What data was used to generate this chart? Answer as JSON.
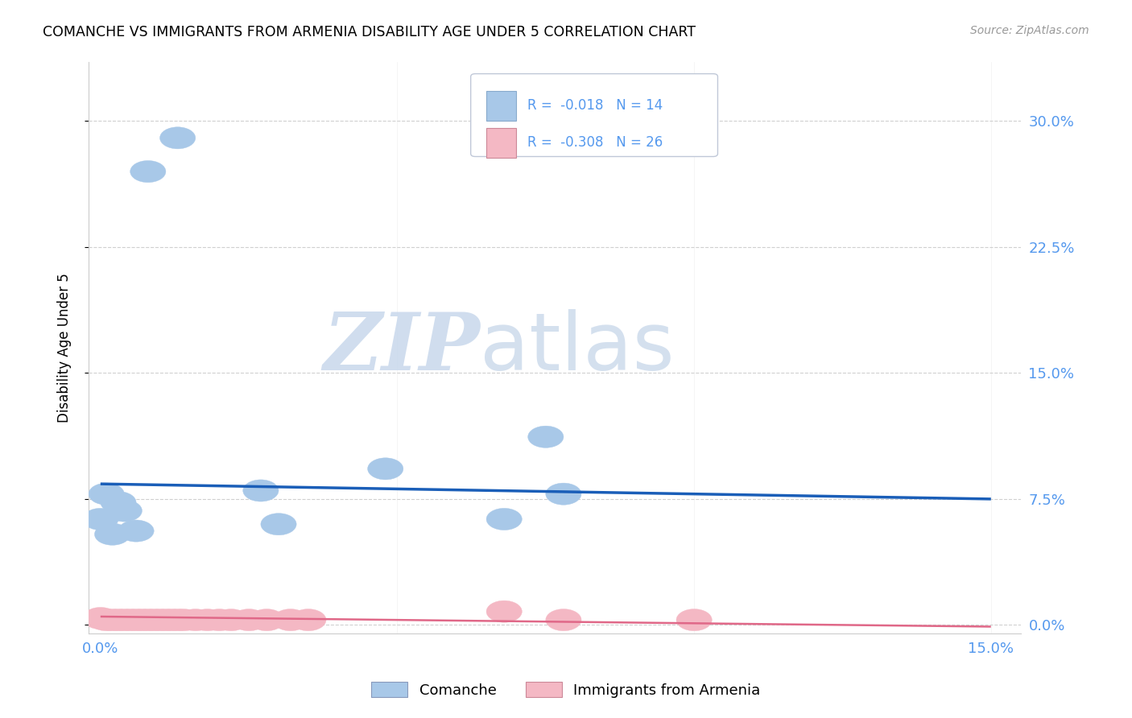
{
  "title": "COMANCHE VS IMMIGRANTS FROM ARMENIA DISABILITY AGE UNDER 5 CORRELATION CHART",
  "source": "Source: ZipAtlas.com",
  "ylabel": "Disability Age Under 5",
  "ytick_labels": [
    "0.0%",
    "7.5%",
    "15.0%",
    "22.5%",
    "30.0%"
  ],
  "ytick_values": [
    0.0,
    0.075,
    0.15,
    0.225,
    0.3
  ],
  "xtick_values": [
    0.0,
    0.05,
    0.1,
    0.15
  ],
  "xtick_labels": [
    "0.0%",
    "",
    "",
    "15.0%"
  ],
  "xlim": [
    -0.002,
    0.155
  ],
  "ylim": [
    -0.005,
    0.335
  ],
  "comanche_x": [
    0.008,
    0.013,
    0.0,
    0.004,
    0.006,
    0.002,
    0.001,
    0.003,
    0.027,
    0.03,
    0.048,
    0.068,
    0.078,
    0.075
  ],
  "comanche_y": [
    0.27,
    0.29,
    0.063,
    0.068,
    0.056,
    0.054,
    0.078,
    0.073,
    0.08,
    0.06,
    0.093,
    0.063,
    0.078,
    0.112
  ],
  "armenia_x": [
    0.0,
    0.001,
    0.002,
    0.003,
    0.004,
    0.005,
    0.006,
    0.007,
    0.008,
    0.009,
    0.01,
    0.011,
    0.012,
    0.013,
    0.014,
    0.016,
    0.018,
    0.02,
    0.022,
    0.025,
    0.028,
    0.032,
    0.035,
    0.068,
    0.078,
    0.1
  ],
  "armenia_y": [
    0.004,
    0.003,
    0.003,
    0.003,
    0.003,
    0.003,
    0.003,
    0.003,
    0.003,
    0.003,
    0.003,
    0.003,
    0.003,
    0.003,
    0.003,
    0.003,
    0.003,
    0.003,
    0.003,
    0.003,
    0.003,
    0.003,
    0.003,
    0.008,
    0.003,
    0.003
  ],
  "comanche_color": "#a8c8e8",
  "armenia_color": "#f4b8c4",
  "trend_comanche_color": "#1a5eb8",
  "trend_armenia_color": "#e06888",
  "watermark_zip": "ZIP",
  "watermark_atlas": "atlas",
  "background_color": "#ffffff",
  "grid_color": "#d0d0d0",
  "tick_color": "#5599ee",
  "legend_comanche_r": "-0.018",
  "legend_comanche_n": "14",
  "legend_armenia_r": "-0.308",
  "legend_armenia_n": "26"
}
